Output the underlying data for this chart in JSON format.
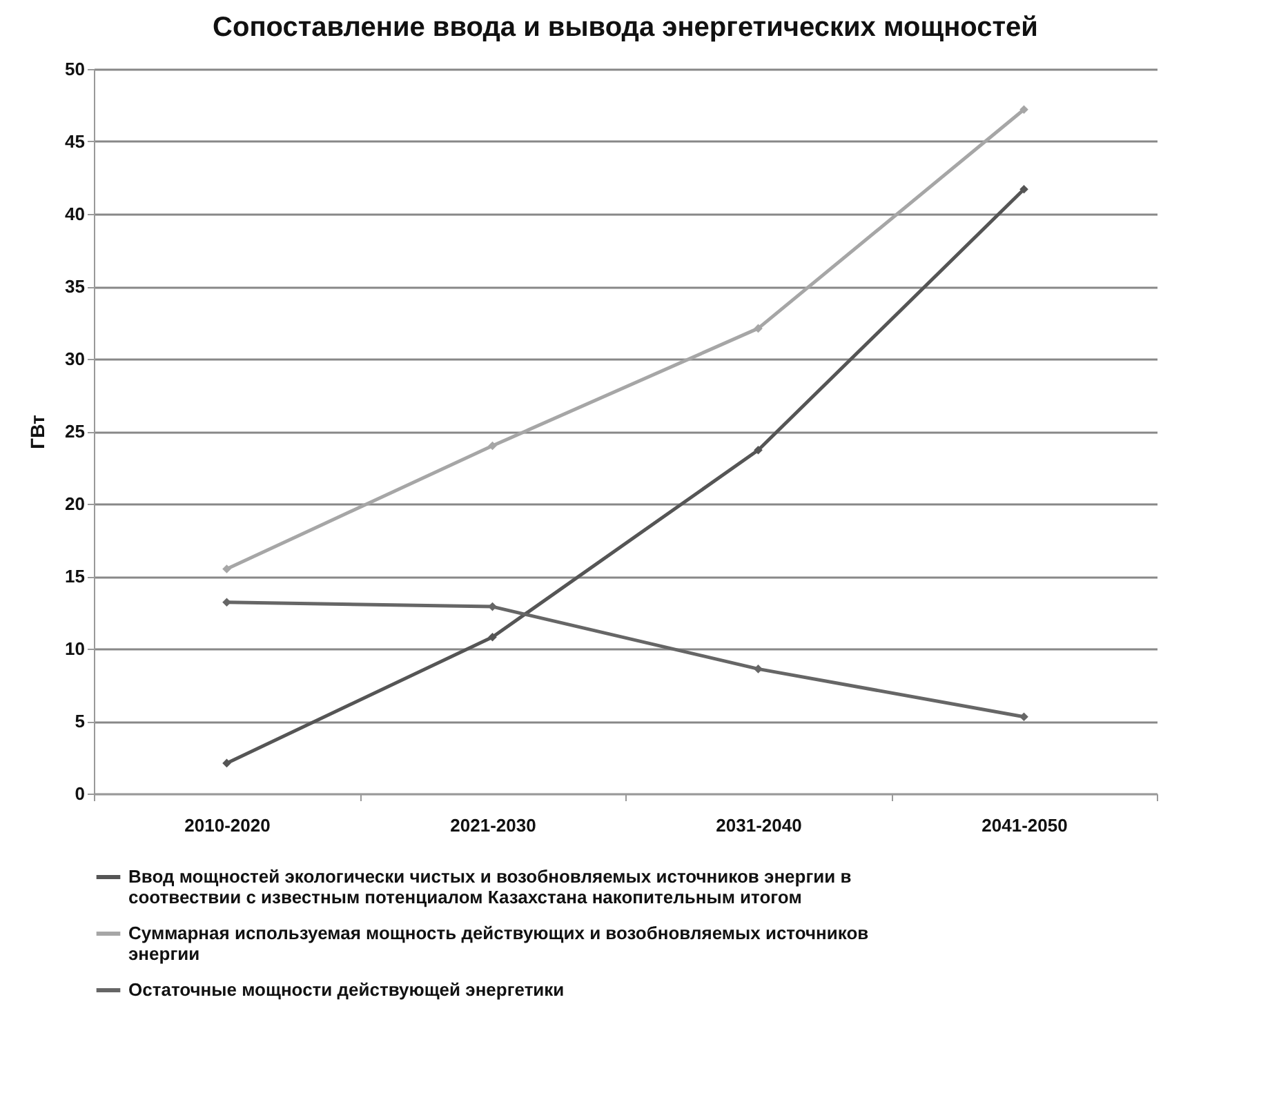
{
  "chart_data": {
    "type": "line",
    "title": "Сопоставление ввода и вывода энергетических мощностей",
    "ylabel": "ГВт",
    "categories": [
      "2010-2020",
      "2021-2030",
      "2031-2040",
      "2041-2050"
    ],
    "series": [
      {
        "name": "Ввод мощностей экологически чистых и возобновляемых источников энергии в соотвествии с известным потенциалом Казахстана накопительным итогом",
        "color": "#555555",
        "values": [
          2.1,
          10.8,
          23.7,
          41.7
        ]
      },
      {
        "name": "Суммарная используемая мощность действующих и возобновляемых источников энергии",
        "color": "#a6a6a6",
        "values": [
          15.5,
          24.0,
          32.1,
          47.2
        ]
      },
      {
        "name": "Остаточные мощности действующей энергетики",
        "color": "#666666",
        "values": [
          13.2,
          12.9,
          8.6,
          5.3
        ]
      }
    ],
    "ylim": [
      0,
      50
    ],
    "yticks": [
      0,
      5,
      10,
      15,
      20,
      25,
      30,
      35,
      40,
      45,
      50
    ],
    "grid": "y",
    "legend": "bottom",
    "marker": "diamond"
  }
}
